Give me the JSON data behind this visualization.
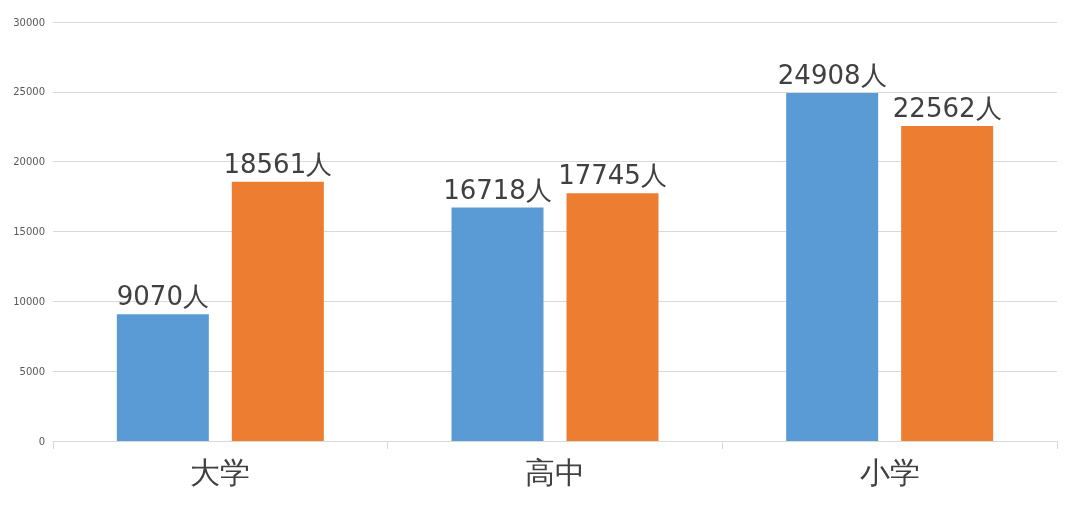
{
  "chart_data": {
    "type": "bar",
    "categories": [
      "大学",
      "高中",
      "小学"
    ],
    "series": [
      {
        "color": "#5b9bd5",
        "values": [
          9070,
          16718,
          24908
        ],
        "value_labels": [
          "9070人",
          "16718人",
          "24908人"
        ]
      },
      {
        "color": "#ed7d31",
        "values": [
          18561,
          17745,
          22562
        ],
        "value_labels": [
          "18561人",
          "17745人",
          "22562人"
        ]
      }
    ],
    "ylim": [
      0,
      30000
    ],
    "yticks": [
      0,
      5000,
      10000,
      15000,
      20000,
      25000,
      30000
    ],
    "grid": "y"
  }
}
